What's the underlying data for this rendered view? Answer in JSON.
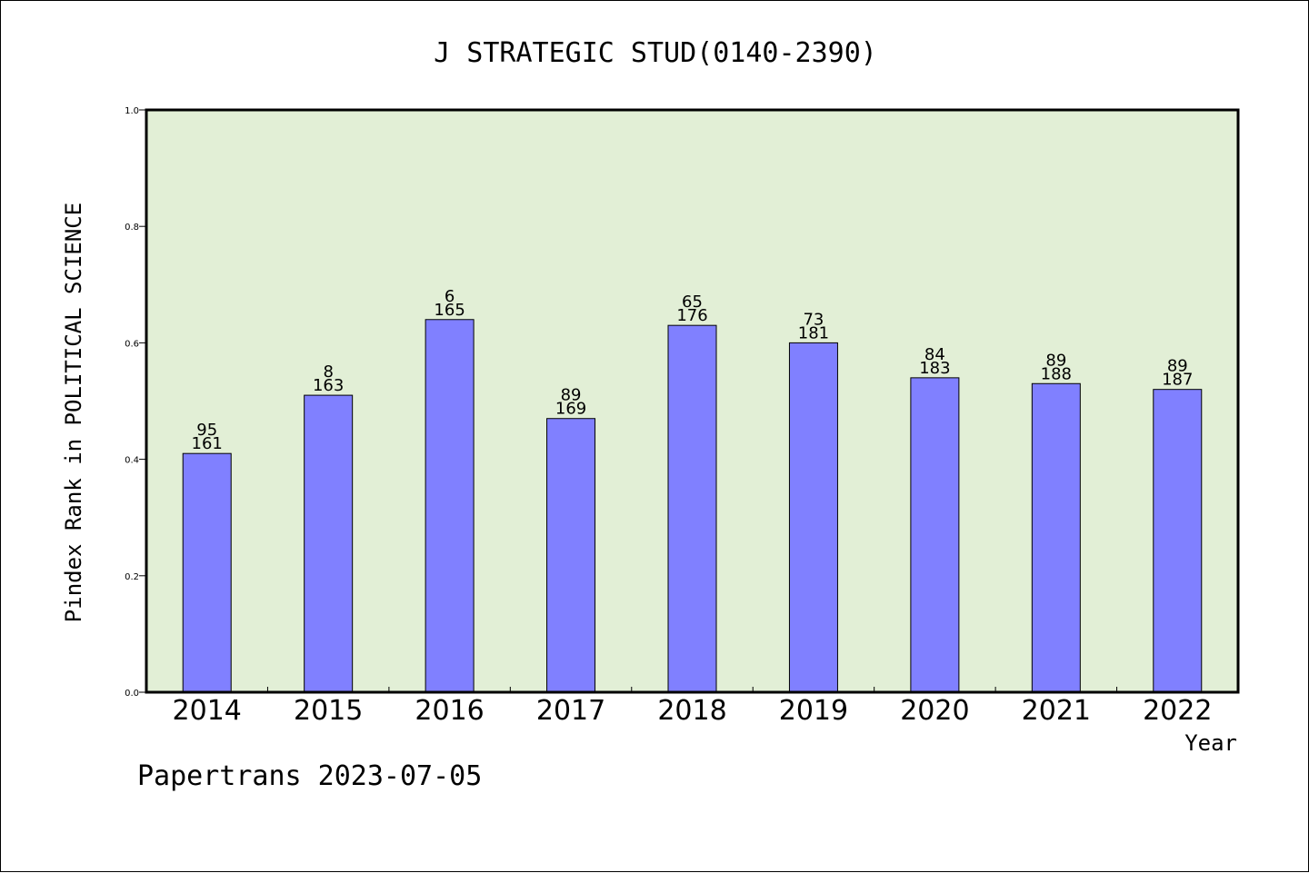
{
  "chart_data": {
    "type": "bar",
    "title": "J STRATEGIC STUD(0140-2390)",
    "xlabel": "Year",
    "ylabel": "Pindex Rank in POLITICAL SCIENCE",
    "footer": "Papertrans 2023-07-05",
    "ylim": [
      0,
      1.0
    ],
    "yticks": [
      "0.0",
      "0.2",
      "0.4",
      "0.6",
      "0.8",
      "1.0"
    ],
    "categories": [
      "2014",
      "2015",
      "2016",
      "2017",
      "2018",
      "2019",
      "2020",
      "2021",
      "2022"
    ],
    "values": [
      0.41,
      0.51,
      0.64,
      0.47,
      0.63,
      0.6,
      0.54,
      0.53,
      0.52
    ],
    "label_top": [
      "95",
      "8",
      "6",
      "89",
      "65",
      "73",
      "84",
      "89",
      "89"
    ],
    "label_bottom": [
      "161",
      "163",
      "165",
      "169",
      "176",
      "181",
      "183",
      "188",
      "187"
    ],
    "grid": false,
    "legend": "none",
    "colors": {
      "bar_fill": "#8080ff",
      "bar_stroke": "#000000",
      "plot_background": "#e2efd6",
      "axis": "#000000"
    }
  }
}
